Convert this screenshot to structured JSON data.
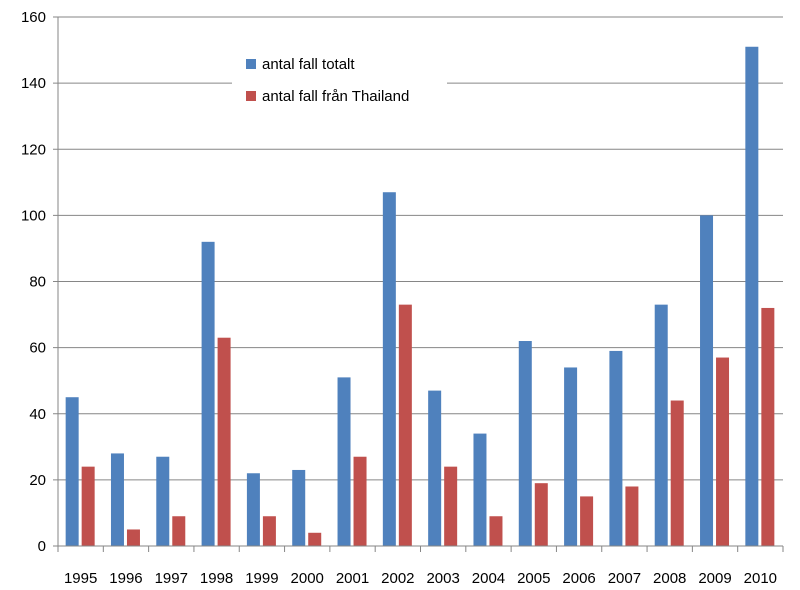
{
  "chart_data": {
    "type": "bar",
    "categories": [
      "1995",
      "1996",
      "1997",
      "1998",
      "1999",
      "2000",
      "2001",
      "2002",
      "2003",
      "2004",
      "2005",
      "2006",
      "2007",
      "2008",
      "2009",
      "2010"
    ],
    "series": [
      {
        "name": "antal fall totalt",
        "color": "#4F81BD",
        "values": [
          45,
          28,
          27,
          92,
          22,
          23,
          51,
          107,
          47,
          34,
          62,
          54,
          59,
          73,
          100,
          151
        ]
      },
      {
        "name": "antal fall från Thailand",
        "color": "#C0504D",
        "values": [
          24,
          5,
          9,
          63,
          9,
          4,
          27,
          73,
          24,
          9,
          19,
          15,
          18,
          44,
          57,
          72
        ]
      }
    ],
    "ylim": [
      0,
      160
    ],
    "yticks": [
      0,
      20,
      40,
      60,
      80,
      100,
      120,
      140,
      160
    ],
    "grid": true,
    "legend_position": "top-left",
    "title": "",
    "xlabel": "",
    "ylabel": ""
  }
}
